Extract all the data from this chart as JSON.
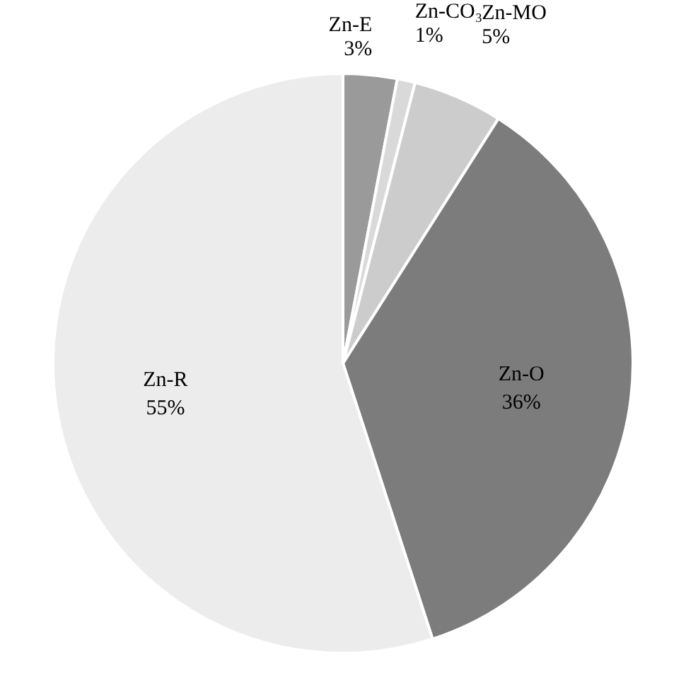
{
  "chart_data": {
    "type": "pie",
    "categories": [
      "Zn-E",
      "Zn-CO₃",
      "Zn-MO",
      "Zn-O",
      "Zn-R"
    ],
    "values": [
      3,
      1,
      5,
      36,
      55
    ],
    "value_labels": [
      "3%",
      "1%",
      "5%",
      "36%",
      "55%"
    ],
    "colors": [
      "#9a9a9a",
      "#d9d9d9",
      "#cccccc",
      "#7c7c7c",
      "#ececec"
    ],
    "legend": false
  }
}
